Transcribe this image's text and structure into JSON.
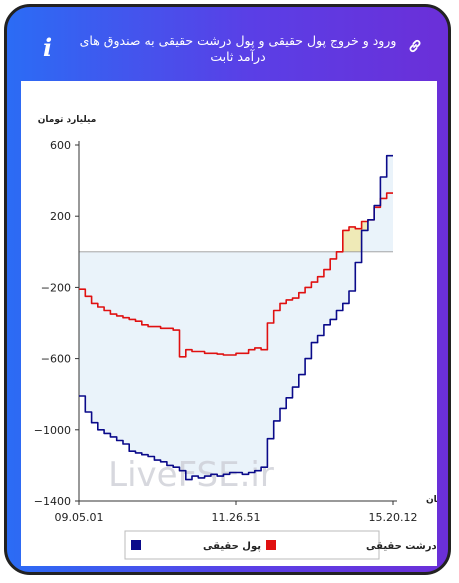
{
  "header": {
    "title": "ورود و خروج پول حقیقی و پول درشت حقیقی به صندوق های درآمد ثابت",
    "info_icon": "i",
    "link_icon": "link-icon"
  },
  "chart_data": {
    "type": "line",
    "ylabel": "میلیارد تومان",
    "xlabel": "زمان",
    "ylim": [
      -1400,
      600
    ],
    "yticks": [
      600,
      200,
      -200,
      -600,
      -1000,
      -1400
    ],
    "ytick_labels": [
      "600",
      "200",
      "−200",
      "−600",
      "−1000",
      "−1400"
    ],
    "xrange": [
      0,
      100
    ],
    "xticks": [
      0,
      50,
      100
    ],
    "xtick_labels": [
      "09.05.01",
      "11.26.51",
      "15.20.12"
    ],
    "watermark": "LiveFSE.ir",
    "series": [
      {
        "name": "پول حقیقی",
        "color": "#0a0a8a",
        "fill": "#eaf3fa",
        "x": [
          0,
          2,
          4,
          6,
          8,
          10,
          12,
          14,
          16,
          18,
          20,
          22,
          24,
          26,
          28,
          30,
          32,
          34,
          36,
          38,
          40,
          42,
          44,
          46,
          48,
          50,
          52,
          54,
          56,
          58,
          60,
          62,
          64,
          66,
          68,
          70,
          72,
          74,
          76,
          78,
          80,
          82,
          84,
          86,
          88,
          90,
          92,
          94,
          96,
          98,
          100
        ],
        "y": [
          -810,
          -900,
          -960,
          -1000,
          -1020,
          -1040,
          -1060,
          -1080,
          -1120,
          -1130,
          -1140,
          -1150,
          -1170,
          -1180,
          -1200,
          -1210,
          -1230,
          -1280,
          -1260,
          -1270,
          -1260,
          -1250,
          -1260,
          -1250,
          -1240,
          -1240,
          -1250,
          -1240,
          -1230,
          -1210,
          -1050,
          -950,
          -880,
          -820,
          -760,
          -690,
          -600,
          -510,
          -470,
          -410,
          -380,
          -330,
          -290,
          -220,
          -60,
          120,
          180,
          260,
          420,
          540,
          540
        ]
      },
      {
        "name": "پول درشت حقیقی",
        "color": "#e01010",
        "fill": "#efeab7",
        "x": [
          0,
          2,
          4,
          6,
          8,
          10,
          12,
          14,
          16,
          18,
          20,
          22,
          24,
          26,
          28,
          30,
          32,
          34,
          36,
          38,
          40,
          42,
          44,
          46,
          48,
          50,
          52,
          54,
          56,
          58,
          60,
          62,
          64,
          66,
          68,
          70,
          72,
          74,
          76,
          78,
          80,
          82,
          84,
          86,
          88,
          90,
          92,
          94,
          96,
          98,
          100
        ],
        "y": [
          -210,
          -250,
          -290,
          -310,
          -330,
          -350,
          -360,
          -370,
          -380,
          -390,
          -410,
          -420,
          -420,
          -430,
          -430,
          -440,
          -590,
          -550,
          -560,
          -560,
          -570,
          -570,
          -575,
          -580,
          -580,
          -570,
          -570,
          -550,
          -540,
          -550,
          -400,
          -330,
          -290,
          -270,
          -260,
          -230,
          -200,
          -170,
          -140,
          -100,
          -40,
          0,
          120,
          140,
          130,
          170,
          180,
          250,
          300,
          330,
          330
        ]
      }
    ],
    "legend": {
      "placement": "bottom",
      "items": [
        {
          "label": "پول حقیقی",
          "color": "#0a0a8a"
        },
        {
          "label": "پول درشت حقیقی",
          "color": "#e01010"
        }
      ]
    }
  }
}
